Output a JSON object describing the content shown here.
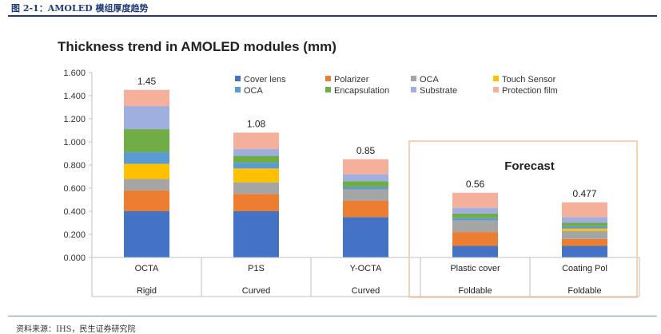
{
  "figure_caption": "图 2-1：AMOLED 模组厚度趋势",
  "source_note": "资料来源：IHS，民生证券研究院",
  "chart_data": {
    "type": "bar",
    "stacked": true,
    "title": "Thickness trend in AMOLED modules (mm)",
    "xlabel": "",
    "ylabel": "",
    "ylim": [
      0,
      1.6
    ],
    "yticks": [
      "0.000",
      "0.200",
      "0.400",
      "0.600",
      "0.800",
      "1.000",
      "1.200",
      "1.400",
      "1.600"
    ],
    "categories": [
      "OCTA",
      "P1S",
      "Y-OCTA",
      "Plastic cover",
      "Coating Pol"
    ],
    "category_groups": [
      "Rigid",
      "Curved",
      "Curved",
      "Foldable",
      "Foldable"
    ],
    "totals": [
      "1.45",
      "1.08",
      "0.85",
      "0.56",
      "0.477"
    ],
    "series": [
      {
        "name": "Cover lens",
        "color": "#4472c4",
        "values": [
          0.4,
          0.4,
          0.35,
          0.1,
          0.1
        ]
      },
      {
        "name": "Polarizer",
        "color": "#ed7d31",
        "values": [
          0.18,
          0.15,
          0.14,
          0.12,
          0.06
        ]
      },
      {
        "name": "OCA",
        "color": "#a5a5a5",
        "values": [
          0.1,
          0.1,
          0.1,
          0.1,
          0.07
        ]
      },
      {
        "name": "Touch Sensor",
        "color": "#ffc000",
        "values": [
          0.13,
          0.12,
          0.0,
          0.0,
          0.02
        ]
      },
      {
        "name": "OCA",
        "color": "#5b9bd5",
        "values": [
          0.1,
          0.05,
          0.02,
          0.02,
          0.02
        ]
      },
      {
        "name": "Encapsulation",
        "color": "#70ad47",
        "values": [
          0.2,
          0.06,
          0.05,
          0.04,
          0.03
        ]
      },
      {
        "name": "Substrate",
        "color": "#9fb0e0",
        "values": [
          0.2,
          0.06,
          0.06,
          0.05,
          0.05
        ]
      },
      {
        "name": "Protection film",
        "color": "#f4b09b",
        "values": [
          0.14,
          0.14,
          0.13,
          0.13,
          0.127
        ]
      }
    ],
    "annotation": "Forecast",
    "annotation_box_color": "#f2c49b"
  }
}
